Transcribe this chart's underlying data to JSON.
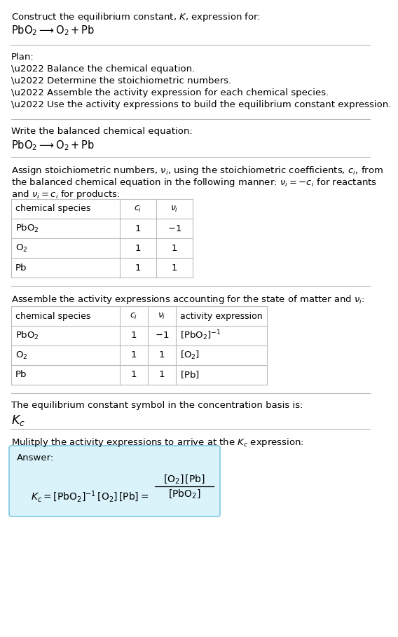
{
  "title_line1": "Construct the equilibrium constant, $K$, expression for:",
  "title_line2": "$\\mathrm{PbO_2} \\longrightarrow \\mathrm{O_2 + Pb}$",
  "plan_header": "Plan:",
  "plan_bullets": [
    "\\u2022 Balance the chemical equation.",
    "\\u2022 Determine the stoichiometric numbers.",
    "\\u2022 Assemble the activity expression for each chemical species.",
    "\\u2022 Use the activity expressions to build the equilibrium constant expression."
  ],
  "section2_header": "Write the balanced chemical equation:",
  "section2_eq": "$\\mathrm{PbO_2} \\longrightarrow \\mathrm{O_2 + Pb}$",
  "table1_cols": [
    "chemical species",
    "$c_i$",
    "$\\nu_i$"
  ],
  "table1_rows": [
    [
      "$\\mathrm{PbO_2}$",
      "1",
      "$-1$"
    ],
    [
      "$\\mathrm{O_2}$",
      "1",
      "1"
    ],
    [
      "Pb",
      "1",
      "1"
    ]
  ],
  "table2_cols": [
    "chemical species",
    "$c_i$",
    "$\\nu_i$",
    "activity expression"
  ],
  "table2_rows": [
    [
      "$\\mathrm{PbO_2}$",
      "1",
      "$-1$",
      "$[\\mathrm{PbO_2}]^{-1}$"
    ],
    [
      "$\\mathrm{O_2}$",
      "1",
      "1",
      "$[\\mathrm{O_2}]$"
    ],
    [
      "Pb",
      "1",
      "1",
      "$[\\mathrm{Pb}]$"
    ]
  ],
  "section5_header": "The equilibrium constant symbol in the concentration basis is:",
  "section5_symbol": "$K_c$",
  "section6_header": "Mulitply the activity expressions to arrive at the $K_c$ expression:",
  "answer_label": "Answer:",
  "answer_box_color": "#daf3fb",
  "answer_box_border": "#7ec8e3",
  "bg_color": "#ffffff",
  "text_color": "#000000",
  "sep_color": "#bbbbbb",
  "table_line_color": "#bbbbbb",
  "font_size": 9.5,
  "fig_width": 5.24,
  "fig_height": 8.89
}
